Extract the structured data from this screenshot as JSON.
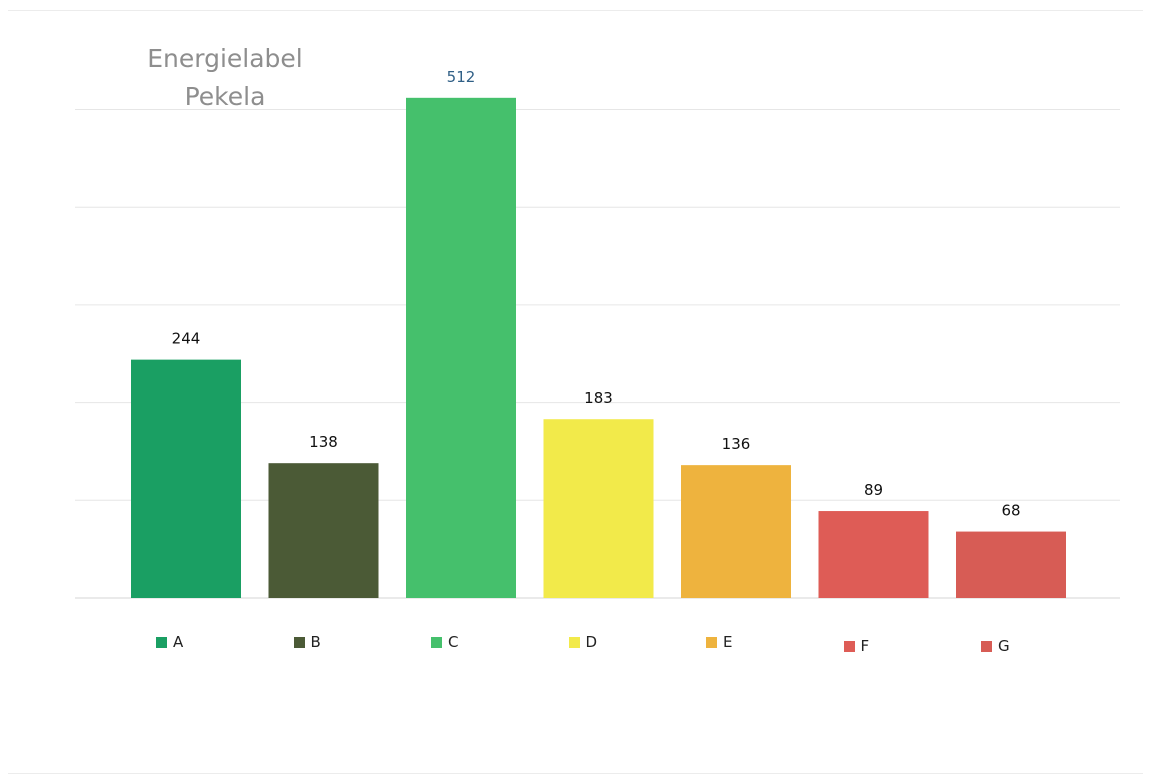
{
  "chart_data": {
    "type": "bar",
    "title_lines": [
      "Energielabel",
      "Pekela"
    ],
    "categories": [
      "A",
      "B",
      "C",
      "D",
      "E",
      "F",
      "G"
    ],
    "values": [
      244,
      138,
      512,
      183,
      136,
      89,
      68
    ],
    "data_labels": [
      "244",
      "138",
      "512",
      "183",
      "136",
      "89",
      "68"
    ],
    "colors": [
      "#1a9f63",
      "#4b5a36",
      "#45c06c",
      "#f2ea4a",
      "#eeb33e",
      "#de5c56",
      "#d75c55"
    ],
    "ylim": [
      0,
      520
    ],
    "grid": true,
    "legend": {
      "position": "bottom",
      "labels": [
        "A",
        "B",
        "C",
        "D",
        "E",
        "F",
        "G"
      ]
    },
    "xlabel": "",
    "ylabel": ""
  }
}
